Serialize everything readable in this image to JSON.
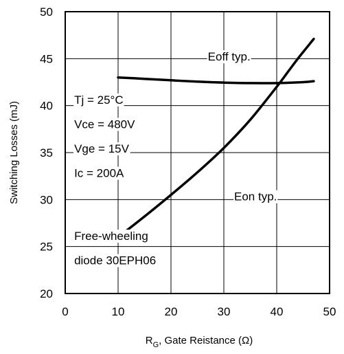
{
  "chart_data": {
    "type": "line",
    "title": "",
    "xlabel_main": "R",
    "xlabel_sub": "G",
    "xlabel_rest": ", Gate Reistance (Ω)",
    "ylabel": "Switching Losses (mJ)",
    "xlim": [
      0,
      50
    ],
    "ylim": [
      20,
      50
    ],
    "x_ticks": [
      "0",
      "10",
      "20",
      "30",
      "40",
      "50"
    ],
    "y_ticks": [
      "20",
      "25",
      "30",
      "35",
      "40",
      "45",
      "50"
    ],
    "grid": true,
    "series": [
      {
        "name": "Eoff typ.",
        "x": [
          10,
          15,
          20,
          25,
          30,
          35,
          40,
          45,
          47
        ],
        "y": [
          43.0,
          42.85,
          42.7,
          42.55,
          42.45,
          42.4,
          42.4,
          42.5,
          42.6
        ]
      },
      {
        "name": "Eon typ.",
        "x": [
          10,
          15,
          20,
          25,
          30,
          35,
          40,
          42,
          44,
          46,
          47
        ],
        "y": [
          26.0,
          28.2,
          30.5,
          32.9,
          35.5,
          38.5,
          42.0,
          43.5,
          45.0,
          46.4,
          47.1
        ]
      }
    ],
    "annotations": [
      {
        "text": "Tj = 25°C",
        "x": 1.7,
        "y": 40.2
      },
      {
        "text": "Vce = 480V",
        "x": 1.7,
        "y": 37.6
      },
      {
        "text": "Vge = 15V",
        "x": 1.7,
        "y": 35.0
      },
      {
        "text": "Ic = 200A",
        "x": 1.7,
        "y": 32.4
      },
      {
        "text": "Free-wheeling",
        "x": 1.7,
        "y": 25.7
      },
      {
        "text": "diode 30EPH06",
        "x": 1.7,
        "y": 23.1
      }
    ]
  }
}
